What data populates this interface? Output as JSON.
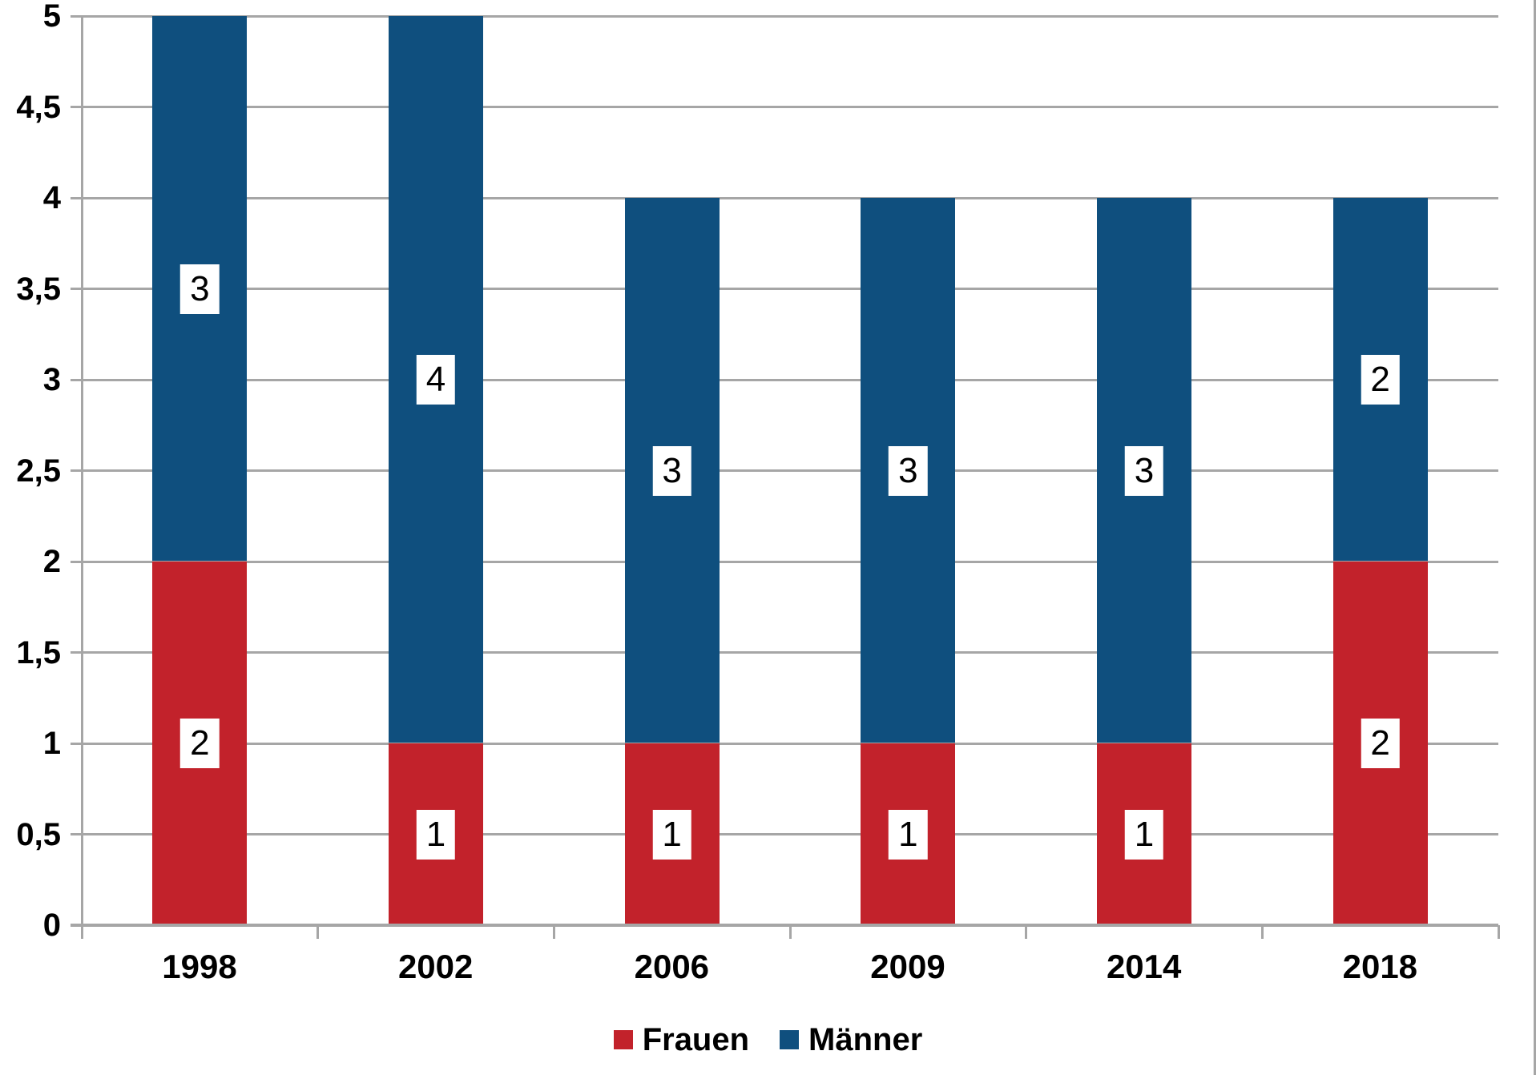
{
  "chart_data": {
    "type": "bar",
    "stacked": true,
    "title": "",
    "categories": [
      "1998",
      "2002",
      "2006",
      "2009",
      "2014",
      "2018"
    ],
    "series": [
      {
        "name": "Frauen",
        "color": "#C2222B",
        "values": [
          2,
          1,
          1,
          1,
          1,
          2
        ]
      },
      {
        "name": "Männer",
        "color": "#0F4F7E",
        "values": [
          3,
          4,
          3,
          3,
          3,
          2
        ]
      }
    ],
    "data_labels": {
      "Frauen": [
        "2",
        "1",
        "1",
        "1",
        "1",
        "2"
      ],
      "Männer": [
        "3",
        "4",
        "3",
        "3",
        "3",
        "2"
      ]
    },
    "xlabel": "",
    "ylabel": "",
    "ylim": [
      0,
      5
    ],
    "ytick_step": 0.5,
    "ytick_labels": [
      "0",
      "0,5",
      "1",
      "1,5",
      "2",
      "2,5",
      "3",
      "3,5",
      "4",
      "4,5",
      "5"
    ],
    "grid": true,
    "legend_position": "bottom",
    "legend_entries": [
      "Frauen",
      "Männer"
    ]
  },
  "colors": {
    "frauen": "#C2222B",
    "maenner": "#0F4F7E",
    "gridline": "#A6A6A6",
    "axis": "#A6A6A6",
    "label_text": "#000000",
    "data_label_bg": "#FFFFFF",
    "background": "#FFFFFF"
  }
}
